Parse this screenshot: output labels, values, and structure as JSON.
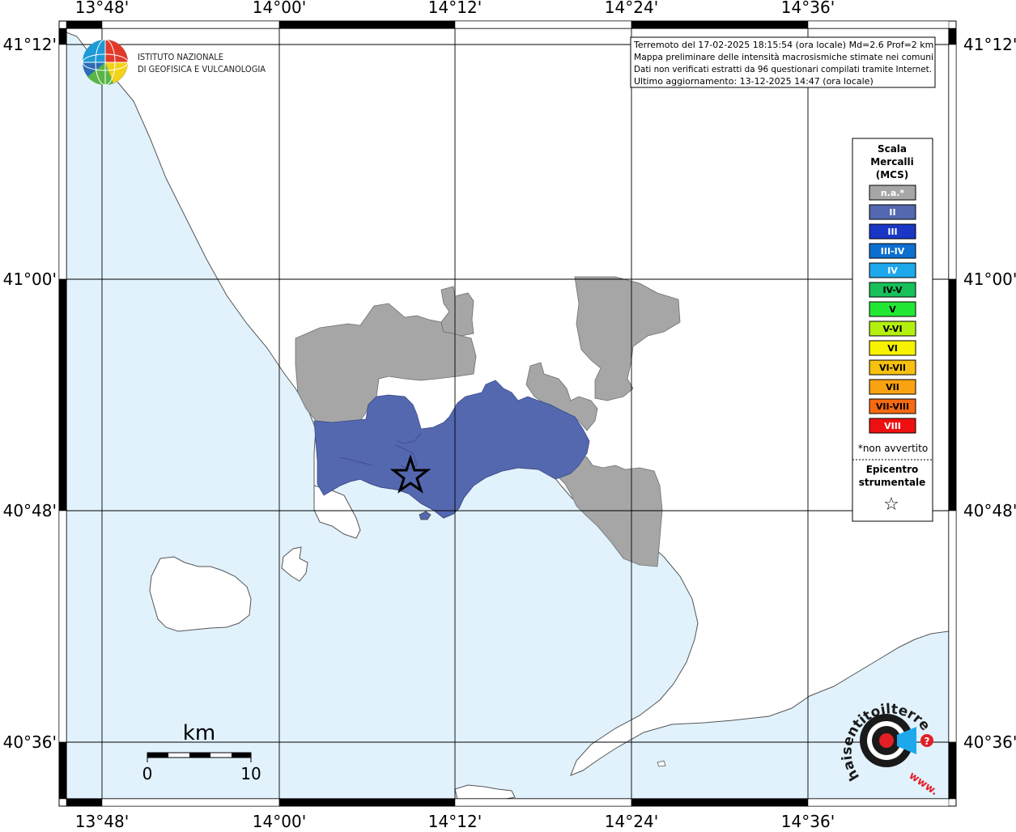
{
  "map": {
    "lon_labels": [
      "13°48'",
      "14°00'",
      "14°12'",
      "14°24'",
      "14°36'"
    ],
    "lat_labels": [
      "41°12'",
      "41°00'",
      "40°48'",
      "40°36'"
    ],
    "colors": {
      "sea": "#e1f2fd",
      "land": "#ffffff",
      "not_felt": "#a6a6a6",
      "intensity_II": "#5468b0",
      "coast": "#555555",
      "grid": "#000000"
    }
  },
  "info_box": {
    "line1": "Terremoto del 17-02-2025 18:15:54 (ora locale) Md=2.6 Prof=2 km",
    "line2": "Mappa preliminare delle intensità macrosismiche stimate nei comuni",
    "line3": "Dati non verificati estratti da 96 questionari compilati tramite Internet.",
    "line4": "Ultimo aggiornamento: 13-12-2025 14:47 (ora locale)"
  },
  "logo": {
    "line1": "ISTITUTO NAZIONALE",
    "line2": "DI GEOFISICA E VULCANOLOGIA"
  },
  "legend": {
    "title1": "Scala",
    "title2": "Mercalli",
    "title3": "(MCS)",
    "items": [
      {
        "label": "n.a.*",
        "color": "#a6a6a6",
        "text_color": "#ffffff"
      },
      {
        "label": "II",
        "color": "#5468b0",
        "text_color": "#ffffff"
      },
      {
        "label": "III",
        "color": "#1a36c4",
        "text_color": "#ffffff"
      },
      {
        "label": "III-IV",
        "color": "#0d6fd0",
        "text_color": "#ffffff"
      },
      {
        "label": "IV",
        "color": "#1ea8ec",
        "text_color": "#ffffff"
      },
      {
        "label": "IV-V",
        "color": "#18c05a",
        "text_color": "#000000"
      },
      {
        "label": "V",
        "color": "#22e834",
        "text_color": "#000000"
      },
      {
        "label": "V-VI",
        "color": "#b4f00e",
        "text_color": "#000000"
      },
      {
        "label": "VI",
        "color": "#f6f200",
        "text_color": "#000000"
      },
      {
        "label": "VI-VII",
        "color": "#f6c10e",
        "text_color": "#000000"
      },
      {
        "label": "VII",
        "color": "#f9a312",
        "text_color": "#000000"
      },
      {
        "label": "VII-VIII",
        "color": "#f76a12",
        "text_color": "#000000"
      },
      {
        "label": "VIII",
        "color": "#ee1010",
        "text_color": "#ffffff"
      }
    ],
    "note": "*non avvertito",
    "epicenter1": "Epicentro",
    "epicenter2": "strumentale",
    "epicenter_symbol": "☆"
  },
  "scale_bar": {
    "unit": "km",
    "start": "0",
    "end": "10"
  },
  "watermark": {
    "arc_text": "haisentitoilterremoto.it",
    "www": "www.",
    "question": "?"
  }
}
